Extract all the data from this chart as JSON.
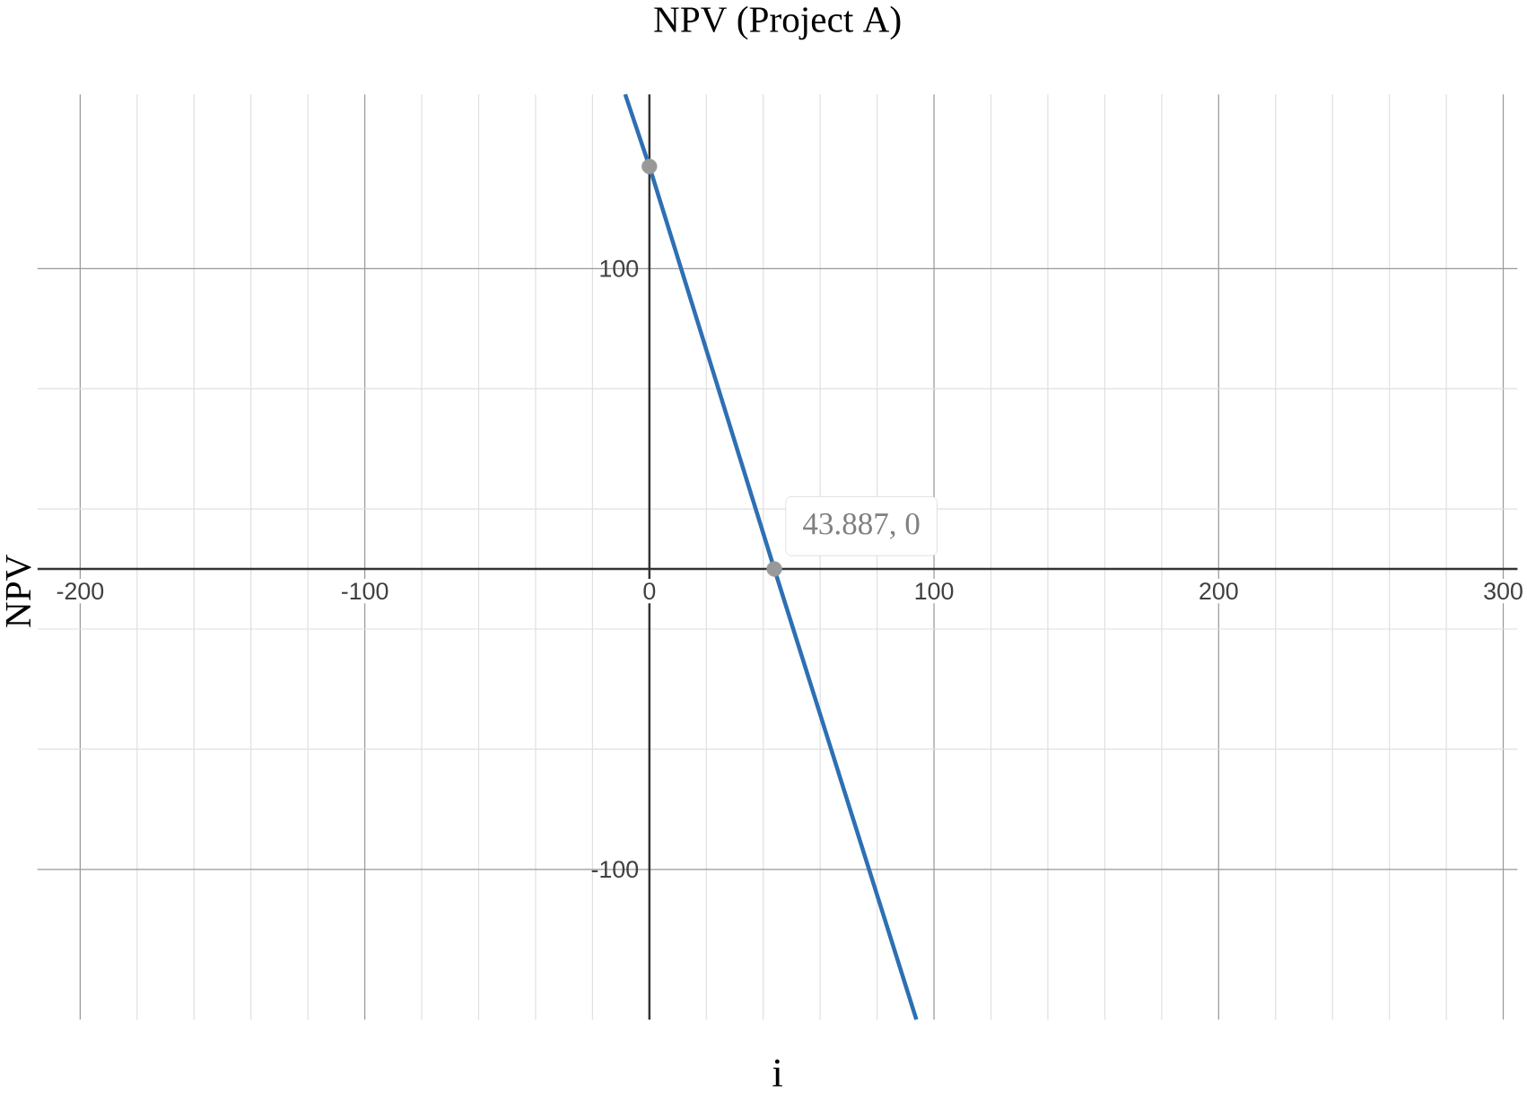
{
  "chart_data": {
    "type": "line",
    "title": "NPV (Project A)",
    "xlabel": "i",
    "ylabel": "NPV",
    "xlim": [
      -215,
      305
    ],
    "ylim": [
      -150,
      158
    ],
    "xticks": [
      -200,
      -100,
      0,
      100,
      200,
      300
    ],
    "yticks": [
      -100,
      100
    ],
    "grid": true,
    "line_style": "solid",
    "series": [
      {
        "type": "line",
        "marker": "none",
        "color": "#2d70b3",
        "x": [
          -8.5,
          0,
          43.887,
          93.8
        ],
        "values": [
          158,
          134,
          0,
          -150
        ]
      },
      {
        "type": "scatter",
        "marker": "circle",
        "color": "#999999",
        "x": [
          0,
          43.887
        ],
        "values": [
          134,
          0
        ]
      }
    ],
    "annotations": [
      {
        "text": "43.887, 0",
        "x": 43.887,
        "y": 0
      }
    ]
  }
}
